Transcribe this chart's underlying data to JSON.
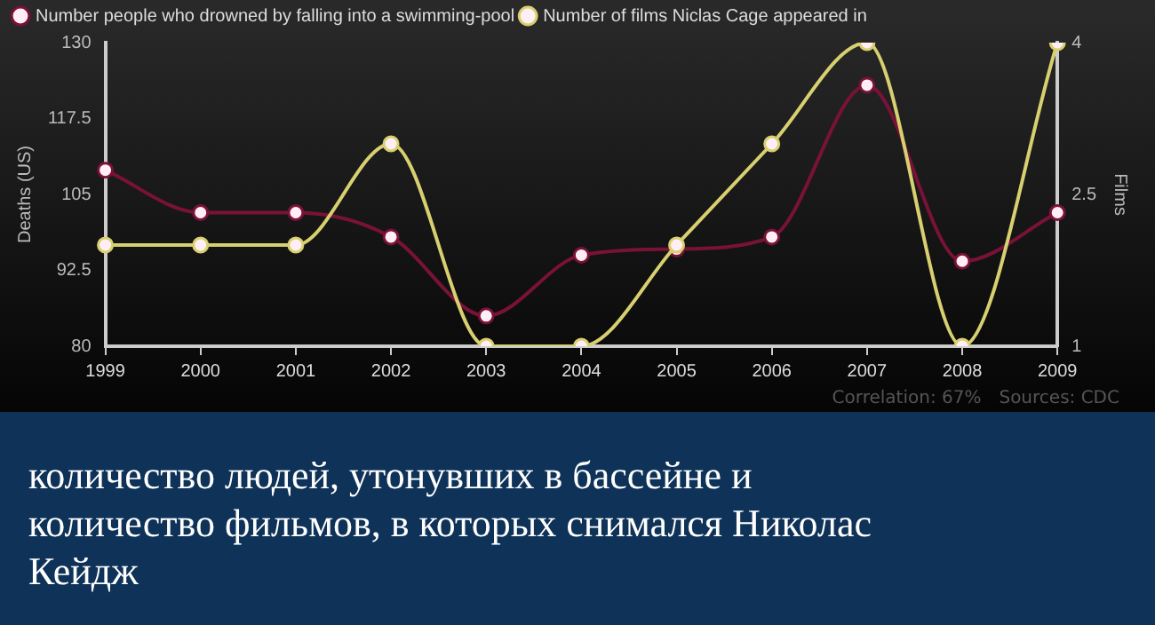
{
  "chart_data": {
    "type": "line",
    "categories": [
      "1999",
      "2000",
      "2001",
      "2002",
      "2003",
      "2004",
      "2005",
      "2006",
      "2007",
      "2008",
      "2009"
    ],
    "series": [
      {
        "name": "Number people who drowned by falling into a swimming-pool",
        "color": "#7a1238",
        "values": [
          109,
          102,
          102,
          98,
          85,
          95,
          96,
          98,
          123,
          94,
          102
        ]
      },
      {
        "name": "Number of films Niclas Cage appeared in",
        "color": "#d8d070",
        "axis": "y2",
        "values": [
          2,
          2,
          2,
          3,
          1,
          1,
          2,
          3,
          4,
          1,
          4
        ]
      }
    ],
    "ylabel": "Deaths (US)",
    "y2label": "Films",
    "ylim": [
      80,
      130
    ],
    "yticks": [
      80,
      92.5,
      105,
      117.5,
      130
    ],
    "y2lim": [
      1,
      4
    ],
    "y2ticks": [
      1,
      2.5,
      4
    ],
    "legend": "top left",
    "marker": "circle",
    "annotations": [
      "Correlation: 67%",
      "Sources: CDC",
      "количество людей, утонувших в бассейне и количество фильмов, в которых снимался Николас Кейдж"
    ]
  }
}
